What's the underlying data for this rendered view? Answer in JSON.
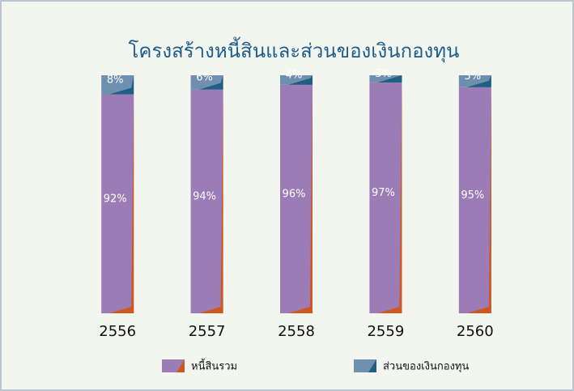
{
  "chart_data": {
    "type": "stacked_bar",
    "title": "โครงสร้างหนี้สินและส่วนของเงินกองทุน",
    "categories": [
      "2556",
      "2557",
      "2558",
      "2559",
      "2560"
    ],
    "series": [
      {
        "name": "หนี้สินรวม",
        "color": "#9b7cb6",
        "accent": "#d0581c",
        "values": [
          92,
          94,
          96,
          97,
          95
        ],
        "value_labels": [
          "92%",
          "94%",
          "96%",
          "97%",
          "95%"
        ]
      },
      {
        "name": "ส่วนของเงินกองทุน",
        "color": "#6f8fae",
        "accent": "#1f5f86",
        "values": [
          8,
          6,
          4,
          3,
          5
        ],
        "value_labels": [
          "8%",
          "6%",
          "4%",
          "3%",
          "5%"
        ]
      }
    ],
    "ylim": [
      0,
      100
    ]
  }
}
